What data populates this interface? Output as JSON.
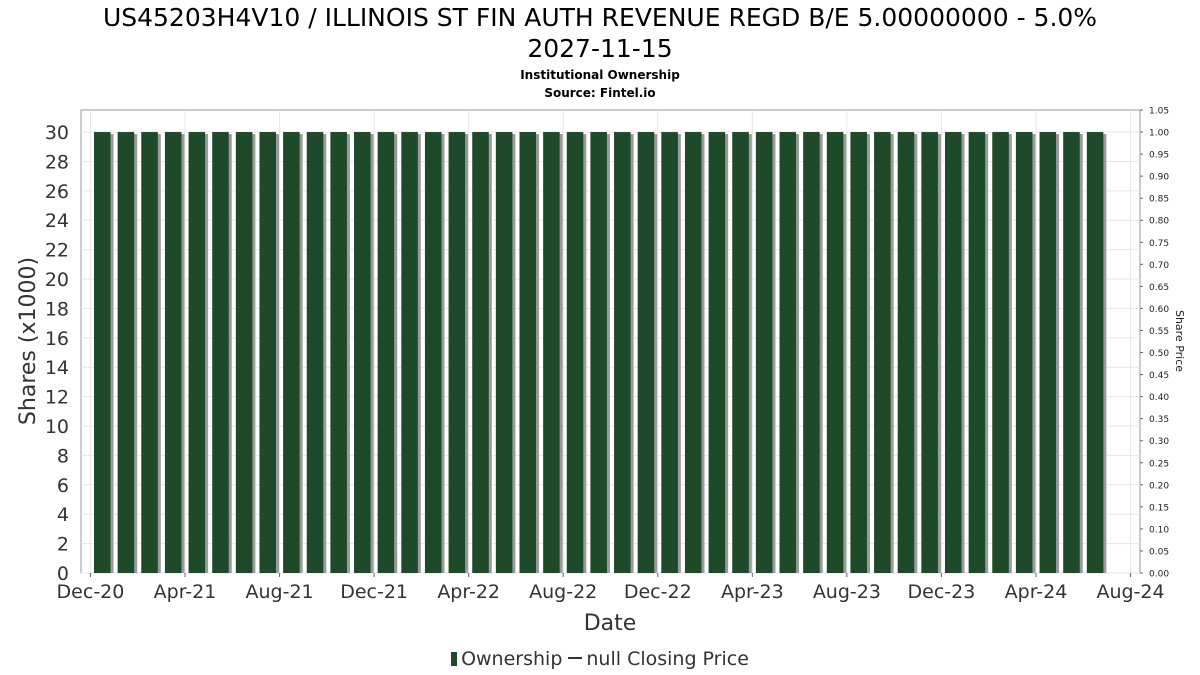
{
  "title_line1": "US45203H4V10 / ILLINOIS ST FIN AUTH REVENUE REGD B/E 5.00000000 - 5.0%",
  "title_line2": "2027-11-15",
  "subtitle": "Institutional Ownership",
  "source": "Source: Fintel.io",
  "legend": {
    "ownership": "Ownership",
    "price": "null Closing Price"
  },
  "colors": {
    "bar": "#1e4a2a",
    "bar_shadow": "#9a9a9a",
    "grid": "#e6e6e6"
  },
  "chart_data": {
    "type": "bar",
    "title": "US45203H4V10 / ILLINOIS ST FIN AUTH REVENUE REGD B/E 5.00000000 - 5.0% 2027-11-15",
    "xlabel": "Date",
    "ylabel": "Shares (x1000)",
    "y2label": "Share Price",
    "ylim": [
      0,
      31.5
    ],
    "y2lim": [
      0,
      1.05
    ],
    "yticks": [
      "0",
      "2",
      "4",
      "6",
      "8",
      "10",
      "12",
      "14",
      "16",
      "18",
      "20",
      "22",
      "24",
      "26",
      "28",
      "30"
    ],
    "y2ticks": [
      "0.00",
      "0.05",
      "0.10",
      "0.15",
      "0.20",
      "0.25",
      "0.30",
      "0.35",
      "0.40",
      "0.45",
      "0.50",
      "0.55",
      "0.60",
      "0.65",
      "0.70",
      "0.75",
      "0.80",
      "0.85",
      "0.90",
      "0.95",
      "1.00",
      "1.05"
    ],
    "xticks": [
      "Dec-20",
      "Apr-21",
      "Aug-21",
      "Dec-21",
      "Apr-22",
      "Aug-22",
      "Dec-22",
      "Apr-23",
      "Aug-23",
      "Dec-23",
      "Apr-24",
      "Aug-24"
    ],
    "xlim_months": [
      -0.4,
      44.4
    ],
    "series": [
      {
        "name": "Ownership",
        "x_months": [
          0.5,
          1.5,
          2.5,
          3.5,
          4.5,
          5.5,
          6.5,
          7.5,
          8.5,
          9.5,
          10.5,
          11.5,
          12.5,
          13.5,
          14.5,
          15.5,
          16.5,
          17.5,
          18.5,
          19.5,
          20.5,
          21.5,
          22.5,
          23.5,
          24.5,
          25.5,
          26.5,
          27.5,
          28.5,
          29.5,
          30.5,
          31.5,
          32.5,
          33.5,
          34.5,
          35.5,
          36.5,
          37.5,
          38.5,
          39.5,
          40.5,
          41.5,
          42.5
        ],
        "values": [
          30,
          30,
          30,
          30,
          30,
          30,
          30,
          30,
          30,
          30,
          30,
          30,
          30,
          30,
          30,
          30,
          30,
          30,
          30,
          30,
          30,
          30,
          30,
          30,
          30,
          30,
          30,
          30,
          30,
          30,
          30,
          30,
          30,
          30,
          30,
          30,
          30,
          30,
          30,
          30,
          30,
          30,
          30
        ]
      },
      {
        "name": "null Closing Price",
        "values": []
      }
    ]
  }
}
